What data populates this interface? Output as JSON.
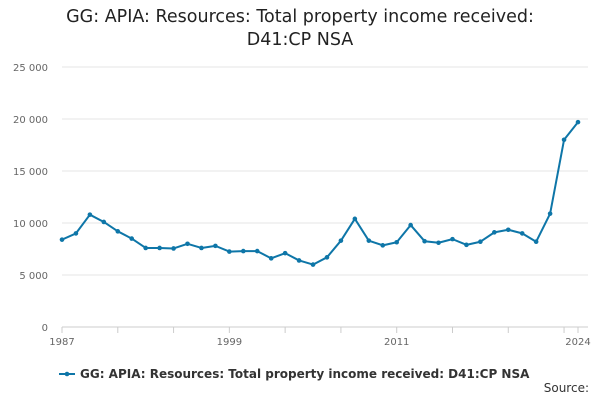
{
  "title": "GG: APIA: Resources: Total property income received: D41:CP NSA",
  "source_label": "Source:",
  "colors": {
    "series": "#0e76a8",
    "grid": "#e6e6e6",
    "axis": "#cccccc"
  },
  "chart_data": {
    "type": "line",
    "title": "GG: APIA: Resources: Total property income received: D41:CP NSA",
    "xlabel": "",
    "ylabel": "",
    "x_ticks": [
      "1987",
      "1999",
      "2011",
      "2024"
    ],
    "y_ticks": [
      "0",
      "5 000",
      "10 000",
      "15 000",
      "20 000",
      "25 000"
    ],
    "ylim": [
      0,
      25000
    ],
    "xlim": [
      1987,
      2024
    ],
    "grid": true,
    "legend_position": "bottom",
    "series": [
      {
        "name": "GG: APIA: Resources: Total property income received: D41:CP NSA",
        "x": [
          1987,
          1988,
          1989,
          1990,
          1991,
          1992,
          1993,
          1994,
          1995,
          1996,
          1997,
          1998,
          1999,
          2000,
          2001,
          2002,
          2003,
          2004,
          2005,
          2006,
          2007,
          2008,
          2009,
          2010,
          2011,
          2012,
          2013,
          2014,
          2015,
          2016,
          2017,
          2018,
          2019,
          2020,
          2021,
          2022,
          2023,
          2024
        ],
        "values": [
          8400,
          9000,
          10800,
          10100,
          9200,
          8500,
          7600,
          7600,
          7550,
          8000,
          7600,
          7800,
          7250,
          7300,
          7300,
          6600,
          7100,
          6400,
          6000,
          6700,
          8300,
          10400,
          8300,
          7850,
          8150,
          9800,
          8250,
          8100,
          8450,
          7900,
          8200,
          9100,
          9350,
          9000,
          8200,
          10900,
          18000,
          19700
        ]
      }
    ]
  }
}
